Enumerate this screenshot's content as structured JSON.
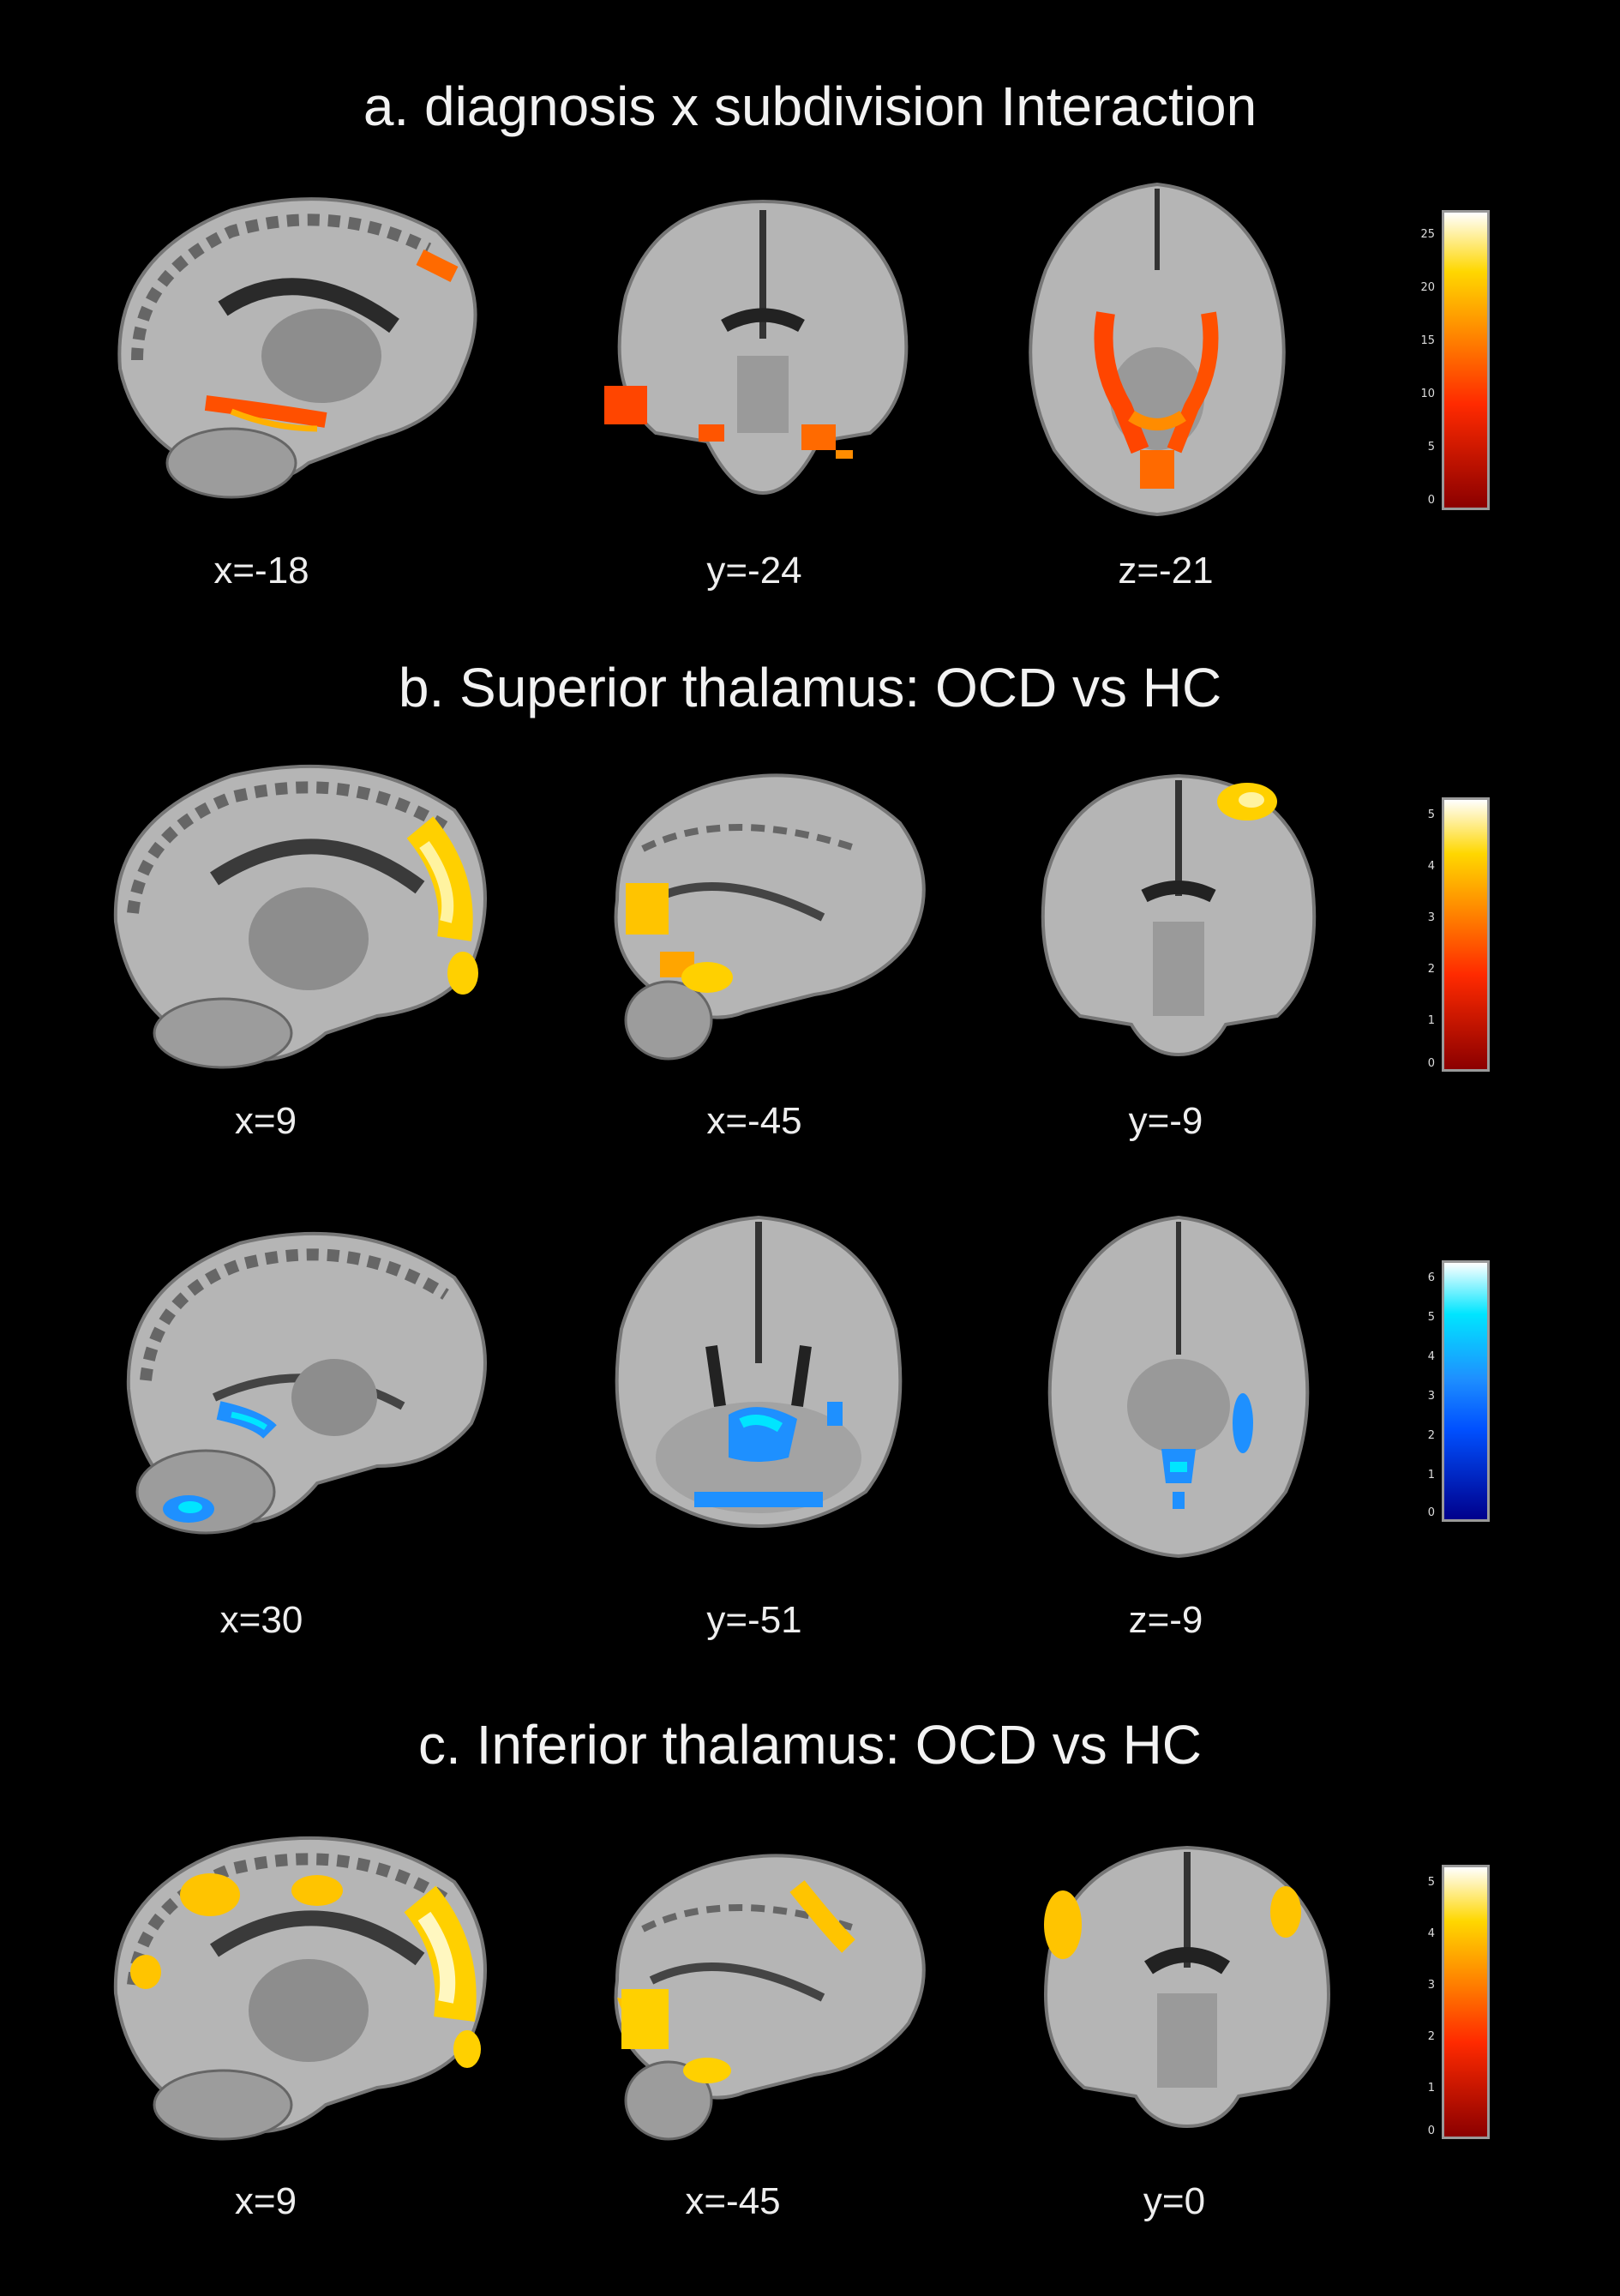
{
  "sections": {
    "a": {
      "title": "a. diagnosis x subdivision Interaction"
    },
    "b": {
      "title": "b. Superior thalamus: OCD vs HC"
    },
    "c": {
      "title": "c. Inferior thalamus: OCD vs HC"
    }
  },
  "rows": [
    {
      "id": "a",
      "slices": [
        {
          "label": "x=-18",
          "view": "sagittal"
        },
        {
          "label": "y=-24",
          "view": "coronal"
        },
        {
          "label": "z=-21",
          "view": "axial"
        }
      ],
      "colorbar": {
        "scheme": "hot",
        "ticks": [
          "25",
          "20",
          "15",
          "10",
          "5",
          "0"
        ]
      }
    },
    {
      "id": "b1",
      "slices": [
        {
          "label": "x=9",
          "view": "sagittal"
        },
        {
          "label": "x=-45",
          "view": "sagittal-lateral"
        },
        {
          "label": "y=-9",
          "view": "coronal"
        }
      ],
      "colorbar": {
        "scheme": "hot",
        "ticks": [
          "5",
          "4",
          "3",
          "2",
          "1",
          "0"
        ]
      }
    },
    {
      "id": "b2",
      "slices": [
        {
          "label": "x=30",
          "view": "sagittal"
        },
        {
          "label": "y=-51",
          "view": "coronal"
        },
        {
          "label": "z=-9",
          "view": "axial"
        }
      ],
      "colorbar": {
        "scheme": "cool",
        "ticks": [
          "6",
          "5",
          "4",
          "3",
          "2",
          "1",
          "0"
        ]
      }
    },
    {
      "id": "c",
      "slices": [
        {
          "label": "x=9",
          "view": "sagittal"
        },
        {
          "label": "x=-45",
          "view": "sagittal-lateral"
        },
        {
          "label": "y=0",
          "view": "coronal"
        }
      ],
      "colorbar": {
        "scheme": "hot",
        "ticks": [
          "5",
          "4",
          "3",
          "2",
          "1",
          "0"
        ]
      }
    }
  ],
  "colors": {
    "hot_low": "#8b0000",
    "hot_mid": "#ff4500",
    "hot_high": "#ffd700",
    "hot_top": "#ffffff",
    "cool_low": "#00008b",
    "cool_mid": "#1e90ff",
    "cool_high": "#00e5ff",
    "cool_top": "#ffffff",
    "brain_gray": "#a8a8a8"
  }
}
